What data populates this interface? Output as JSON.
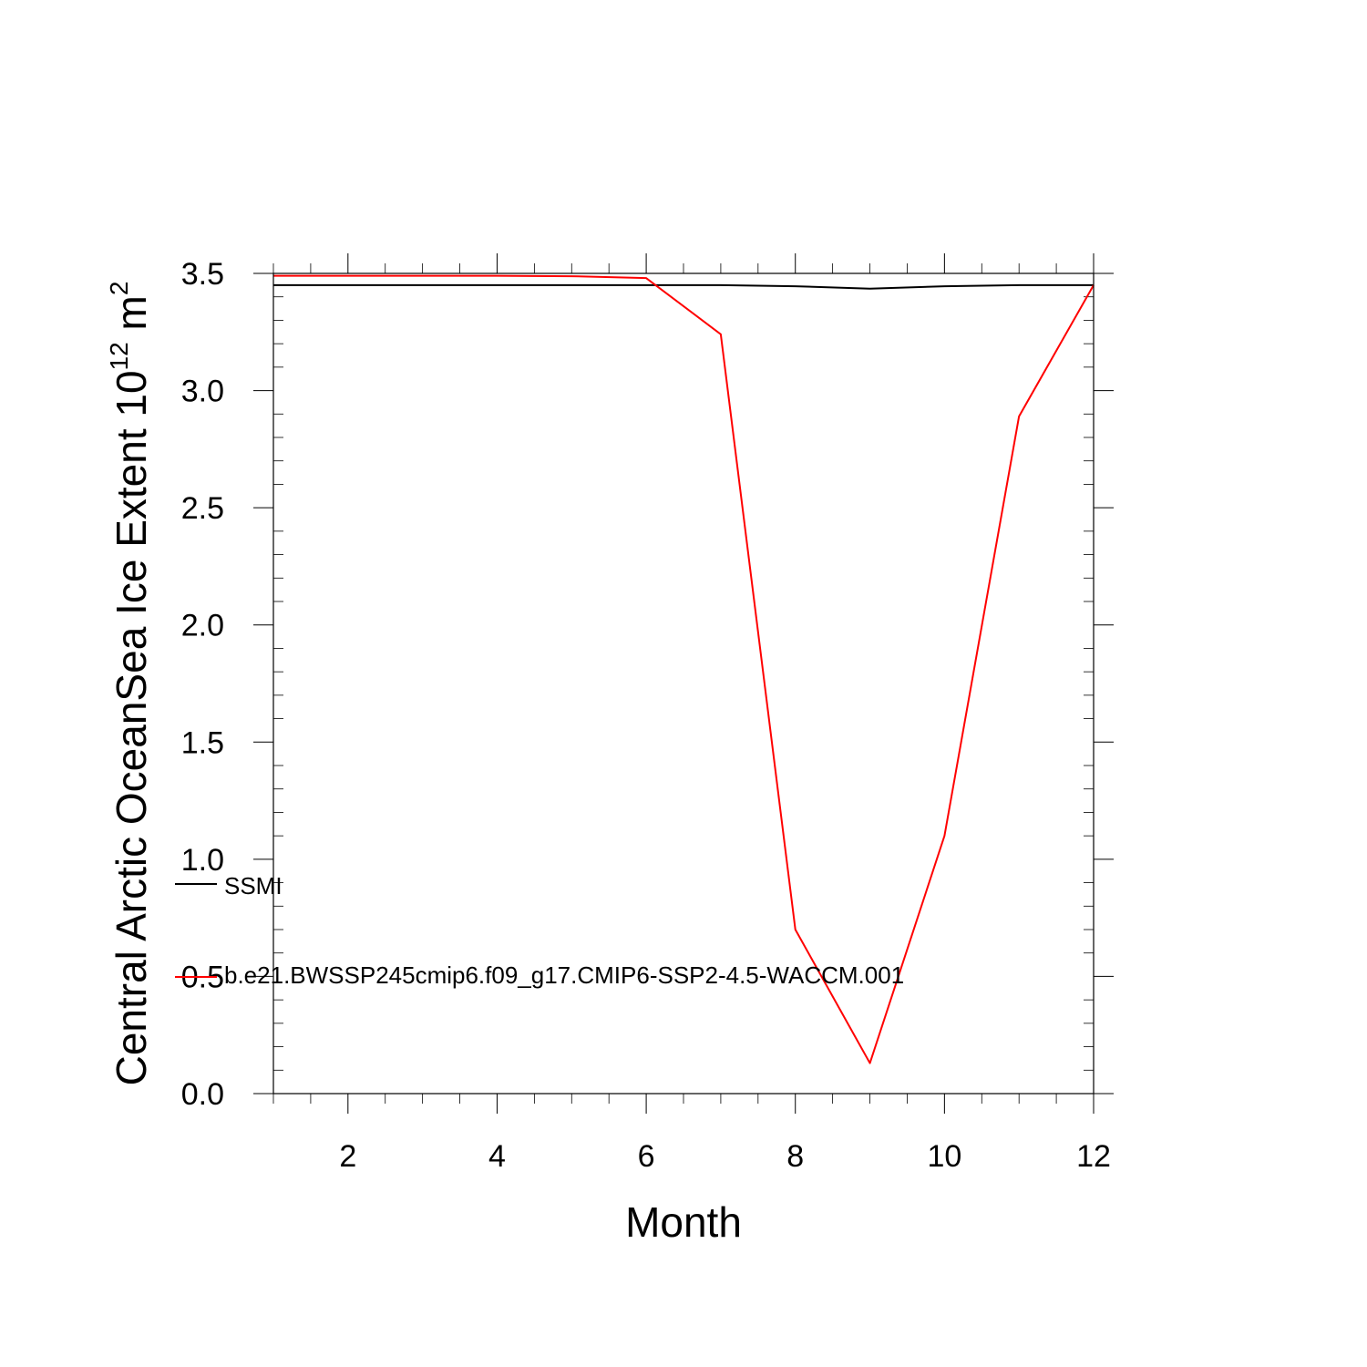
{
  "chart_data": {
    "type": "line",
    "title": "",
    "xlabel": "Month",
    "ylabel_main": "Central Arctic OceanSea Ice Extent 10",
    "ylabel_exponent": "12",
    "ylabel_unit": " m",
    "ylabel_unit_exponent": "2",
    "xlim": [
      1,
      12
    ],
    "ylim": [
      0.0,
      3.5
    ],
    "x_major_ticks": [
      2,
      4,
      6,
      8,
      10,
      12
    ],
    "x_tick_labels": [
      "2",
      "4",
      "6",
      "8",
      "10",
      "12"
    ],
    "y_major_ticks": [
      0.0,
      0.5,
      1.0,
      1.5,
      2.0,
      2.5,
      3.0,
      3.5
    ],
    "y_tick_labels": [
      "0.0",
      "0.5",
      "1.0",
      "1.5",
      "2.0",
      "2.5",
      "3.0",
      "3.5"
    ],
    "grid": false,
    "legend_placement": "inside left",
    "x": [
      1,
      2,
      3,
      4,
      5,
      6,
      7,
      8,
      9,
      10,
      11,
      12
    ],
    "series": [
      {
        "name": "SSMI",
        "color": "#000000",
        "values": [
          3.45,
          3.45,
          3.45,
          3.45,
          3.45,
          3.45,
          3.45,
          3.445,
          3.435,
          3.445,
          3.45,
          3.45
        ]
      },
      {
        "name": "b.e21.BWSSP245cmip6.f09_g17.CMIP6-SSP2-4.5-WACCM.001",
        "color": "#ff0000",
        "values": [
          3.49,
          3.49,
          3.49,
          3.49,
          3.488,
          3.48,
          3.24,
          0.7,
          0.13,
          1.1,
          2.89,
          3.45
        ]
      }
    ]
  }
}
